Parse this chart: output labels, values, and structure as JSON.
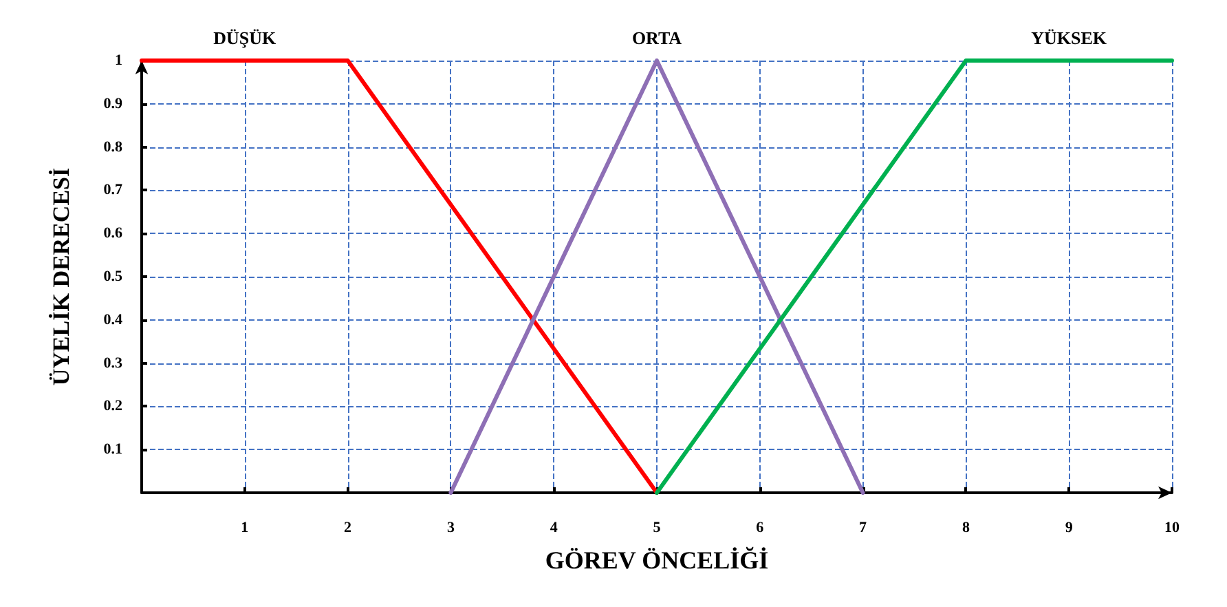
{
  "chart_data": {
    "type": "line",
    "xlabel": "GÖREV ÖNCELİĞİ",
    "ylabel": "ÜYELİK DERECESİ",
    "xlim": [
      0,
      10
    ],
    "ylim": [
      0,
      1
    ],
    "xticks": [
      {
        "value": 0,
        "label": null
      },
      1,
      2,
      3,
      4,
      5,
      6,
      7,
      8,
      9,
      10
    ],
    "yticks": [
      {
        "value": 0,
        "label": null
      },
      0.1,
      0.2,
      0.3,
      0.4,
      0.5,
      0.6,
      0.7,
      0.8,
      0.9,
      1
    ],
    "grid": true,
    "legend": false,
    "marker": "none",
    "line_style": "solid",
    "series": [
      {
        "name": "DÜŞÜK",
        "color": "#ff0000",
        "x": [
          0,
          2,
          5
        ],
        "values": [
          1,
          1,
          0
        ]
      },
      {
        "name": "ORTA",
        "color": "#8e6fb5",
        "x": [
          3,
          5,
          7
        ],
        "values": [
          0,
          1,
          0
        ]
      },
      {
        "name": "YÜKSEK",
        "color": "#00b050",
        "x": [
          5,
          8,
          10
        ],
        "values": [
          0,
          1,
          1
        ]
      }
    ]
  }
}
